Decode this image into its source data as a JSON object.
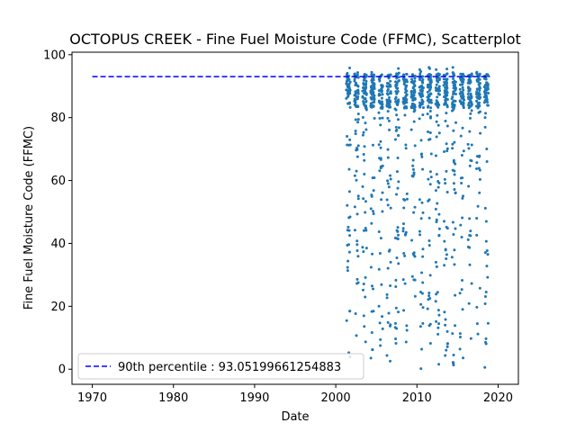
{
  "chart_data": {
    "type": "scatter",
    "title": "OCTOPUS CREEK - Fine Fuel Moisture Code (FFMC), Scatterplot",
    "xlabel": "Date",
    "ylabel": "Fine Fuel Moisture Code (FFMC)",
    "xlim": [
      1967.5,
      2022.5
    ],
    "ylim": [
      -4.8,
      100.8
    ],
    "xticks": [
      1970,
      1980,
      1990,
      2000,
      2010,
      2020
    ],
    "yticks": [
      0,
      20,
      40,
      60,
      80,
      100
    ],
    "grid": false,
    "legend_position": "lower left",
    "series": [
      {
        "kind": "scatter",
        "color": "#1f77b4",
        "season_years": [
          2001,
          2002,
          2003,
          2004,
          2005,
          2006,
          2007,
          2008,
          2009,
          2010,
          2011,
          2012,
          2013,
          2014,
          2015,
          2016,
          2017,
          2018
        ],
        "points_per_season": 70,
        "season_start_offset": 0.3,
        "season_end_offset": 0.8,
        "value_range": [
          0,
          96
        ],
        "dense_band": [
          83,
          94
        ]
      },
      {
        "name": "90th percentile : 93.05199661254883",
        "kind": "hline",
        "style": "dashed",
        "color": "#0000ff",
        "y": 93.05199661254883,
        "x": [
          1970,
          2019
        ]
      }
    ]
  },
  "text": {
    "title": "OCTOPUS CREEK - Fine Fuel Moisture Code (FFMC), Scatterplot",
    "xlabel": "Date",
    "ylabel": "Fine Fuel Moisture Code (FFMC)",
    "legend_label": "90th percentile : 93.05199661254883"
  }
}
